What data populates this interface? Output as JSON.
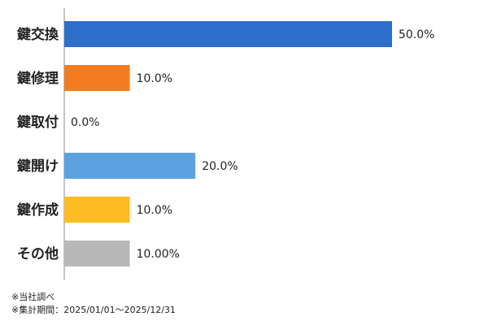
{
  "chart_data": {
    "type": "bar",
    "orientation": "horizontal",
    "categories": [
      "鍵交換",
      "鍵修理",
      "鍵取付",
      "鍵開け",
      "鍵作成",
      "その他"
    ],
    "values": [
      50.0,
      10.0,
      0.0,
      20.0,
      10.0,
      10.0
    ],
    "value_labels": [
      "50.0%",
      "10.0%",
      "0.0%",
      "20.0%",
      "10.0%",
      "10.00%"
    ],
    "colors": [
      "#2e6fcb",
      "#f47c20",
      "#2e6fcb",
      "#5ba3e0",
      "#fdbb24",
      "#b8b8b8"
    ],
    "xlim": [
      0,
      50
    ],
    "notes": [
      "※当社調べ",
      "※集計期間：2025/01/01～2025/12/31"
    ]
  }
}
